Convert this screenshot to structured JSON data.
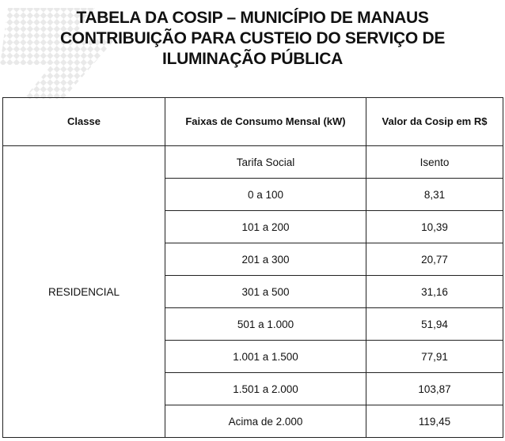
{
  "title": {
    "line1": "TABELA DA COSIP – MUNICÍPIO DE MANAUS",
    "line2": "CONTRIBUIÇÃO PARA CUSTEIO DO SERVIÇO DE",
    "line3": "ILUMINAÇÃO PÚBLICA"
  },
  "watermark": {
    "icon": "diagonal-watermark-pattern",
    "color": "#e6e6e6"
  },
  "table": {
    "headers": {
      "classe": "Classe",
      "faixas": "Faixas de Consumo Mensal (kW)",
      "valor": "Valor da Cosip em R$"
    },
    "classe": "RESIDENCIAL",
    "rows": [
      {
        "faixa": "Tarifa Social",
        "valor": "Isento"
      },
      {
        "faixa": "0 a 100",
        "valor": "8,31"
      },
      {
        "faixa": "101 a 200",
        "valor": "10,39"
      },
      {
        "faixa": "201 a 300",
        "valor": "20,77"
      },
      {
        "faixa": "301 a 500",
        "valor": "31,16"
      },
      {
        "faixa": "501 a 1.000",
        "valor": "51,94"
      },
      {
        "faixa": "1.001 a 1.500",
        "valor": "77,91"
      },
      {
        "faixa": "1.501 a 2.000",
        "valor": "103,87"
      },
      {
        "faixa": "Acima de 2.000",
        "valor": "119,45"
      }
    ]
  }
}
